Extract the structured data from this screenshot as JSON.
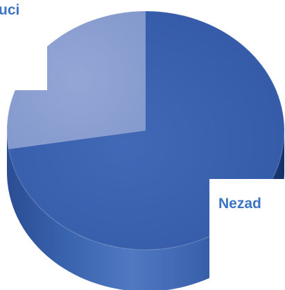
{
  "chart_data": {
    "type": "pie",
    "style": "3d",
    "slices": [
      {
        "label": "Nezad",
        "value": 72.5,
        "color": "#3a62b1"
      },
      {
        "label": "uci",
        "value": 27.5,
        "color": "#8fa4d4"
      }
    ]
  }
}
